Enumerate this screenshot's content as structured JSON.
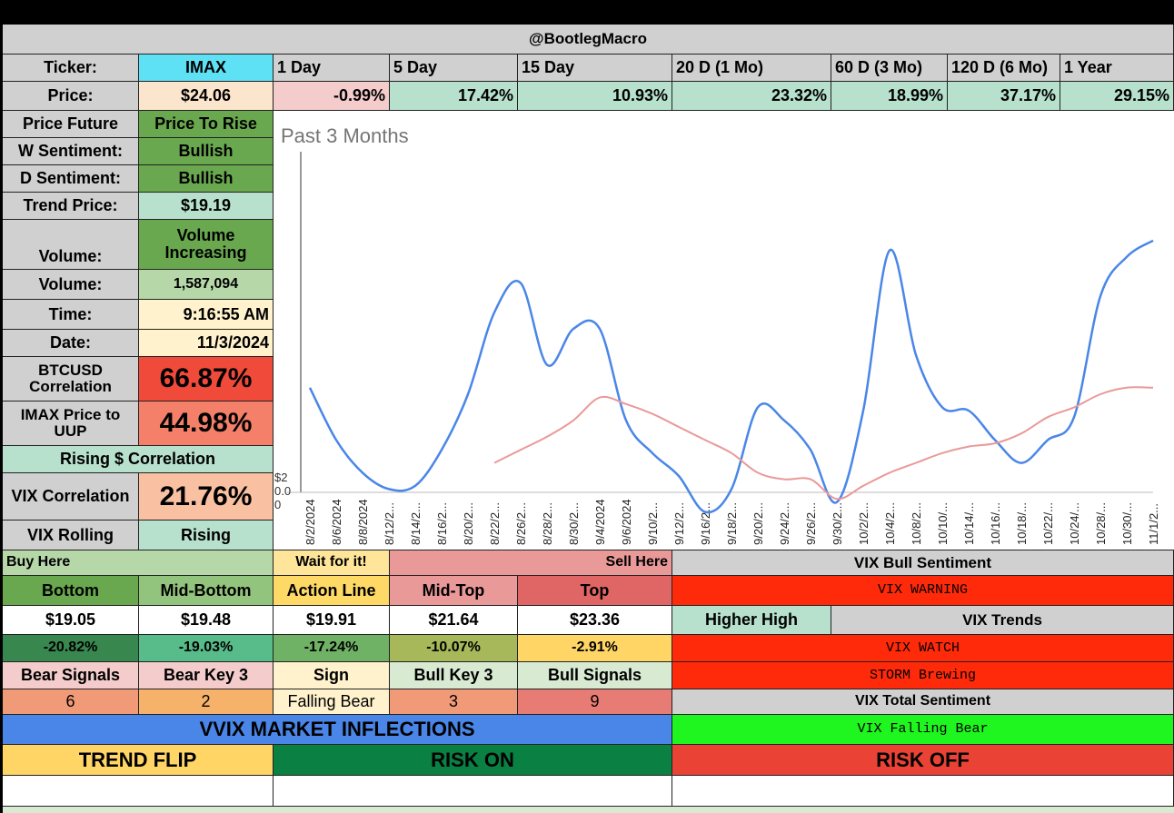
{
  "header": {
    "title": "@BootlegMacro"
  },
  "ticker": {
    "label": "Ticker:",
    "value": "IMAX"
  },
  "price": {
    "label": "Price:",
    "value": "$24.06"
  },
  "periods": [
    {
      "label": "1 Day",
      "change": "-0.99%",
      "color": "#f4cccc"
    },
    {
      "label": "5 Day",
      "change": "17.42%",
      "color": "#b7e1cd"
    },
    {
      "label": "15 Day",
      "change": "10.93%",
      "color": "#b7e1cd"
    },
    {
      "label": "20 D (1 Mo)",
      "change": "23.32%",
      "color": "#b7e1cd"
    },
    {
      "label": "60 D (3 Mo)",
      "change": "18.99%",
      "color": "#b7e1cd"
    },
    {
      "label": "120 D (6 Mo)",
      "change": "37.17%",
      "color": "#b7e1cd"
    },
    {
      "label": "1 Year",
      "change": "29.15%",
      "color": "#b7e1cd"
    }
  ],
  "left_panel": {
    "price_future_label": "Price Future",
    "price_future_value": "Price To Rise",
    "w_sentiment_label": "W Sentiment:",
    "w_sentiment_value": "Bullish",
    "d_sentiment_label": "D Sentiment:",
    "d_sentiment_value": "Bullish",
    "trend_price_label": "Trend Price:",
    "trend_price_value": "$19.19",
    "volume_trend_label": "Volume:",
    "volume_trend_value": "Volume Increasing",
    "volume_label": "Volume:",
    "volume_value": "1,587,094",
    "time_label": "Time:",
    "time_value": "9:16:55 AM",
    "date_label": "Date:",
    "date_value": "11/3/2024",
    "btc_corr_label": "BTCUSD Correlation",
    "btc_corr_value": "66.87%",
    "uup_corr_label": "IMAX Price to UUP",
    "uup_corr_value": "44.98%",
    "rising_corr_label": "Rising $ Correlation",
    "vix_corr_label": "VIX Correlation",
    "vix_corr_value": "21.76%",
    "vix_rolling_label": "VIX Rolling",
    "vix_rolling_value": "Rising"
  },
  "levels": {
    "buy_here": "Buy Here",
    "wait": "Wait for it!",
    "sell_here": "Sell Here",
    "headers": [
      "Bottom",
      "Mid-Bottom",
      "Action Line",
      "Mid-Top",
      "Top"
    ],
    "prices": [
      "$19.05",
      "$19.48",
      "$19.91",
      "$21.64",
      "$23.36"
    ],
    "pcts": [
      "-20.82%",
      "-19.03%",
      "-17.24%",
      "-10.07%",
      "-2.91%"
    ]
  },
  "signals": {
    "headers": [
      "Bear Signals",
      "Bear Key 3",
      "Sign",
      "Bull Key 3",
      "Bull Signals"
    ],
    "values": [
      "6",
      "2",
      "Falling Bear",
      "3",
      "9"
    ]
  },
  "vix_panel": {
    "bull_sentiment": "VIX Bull Sentiment",
    "warning": "VIX WARNING",
    "higher_high": "Higher High",
    "trends": "VIX Trends",
    "watch": "VIX WATCH",
    "storm": "STORM Brewing",
    "total_sentiment": "VIX Total Sentiment",
    "falling_bear": "VIX Falling Bear"
  },
  "inflections": {
    "title": "VVIX MARKET INFLECTIONS",
    "trend_flip": "TREND FLIP",
    "risk_on": "RISK ON",
    "risk_off": "RISK OFF"
  },
  "chart_data": {
    "type": "line",
    "title": "Past 3 Months",
    "y_tick_labels": [
      "$2",
      "0.0",
      "0"
    ],
    "x": [
      "8/2/2024",
      "8/6/2024",
      "8/8/2024",
      "8/12/2...",
      "8/14/2...",
      "8/16/2...",
      "8/20/2...",
      "8/22/2...",
      "8/26/2...",
      "8/28/2...",
      "8/30/2...",
      "9/4/2024",
      "9/6/2024",
      "9/10/2...",
      "9/12/2...",
      "9/16/2...",
      "9/18/2...",
      "9/20/2...",
      "9/24/2...",
      "9/26/2...",
      "9/30/2...",
      "10/2/2...",
      "10/4/2...",
      "10/8/2...",
      "10/10/...",
      "10/14/...",
      "10/16/...",
      "10/18/...",
      "10/22/...",
      "10/24/...",
      "10/28/...",
      "10/30/...",
      "11/1/2..."
    ],
    "ylim": [
      0,
      10
    ],
    "series": [
      {
        "name": "Price",
        "color": "#4a86e8",
        "values": [
          3.2,
          1.6,
          0.6,
          0.1,
          0.2,
          1.3,
          3.0,
          5.5,
          6.4,
          3.9,
          5.0,
          5.0,
          2.2,
          1.2,
          0.5,
          -0.6,
          0.1,
          2.6,
          2.2,
          1.3,
          -0.3,
          2.5,
          7.4,
          4.2,
          2.6,
          2.5,
          1.6,
          0.9,
          1.6,
          2.3,
          6.0,
          7.2,
          7.7
        ]
      },
      {
        "name": "Moving Average",
        "color": "#ea9999",
        "values": [
          null,
          null,
          null,
          null,
          null,
          null,
          null,
          0.9,
          1.3,
          1.7,
          2.2,
          2.9,
          2.7,
          2.4,
          2.0,
          1.6,
          1.2,
          0.6,
          0.4,
          0.4,
          -0.2,
          0.2,
          0.6,
          0.9,
          1.2,
          1.4,
          1.5,
          1.8,
          2.3,
          2.6,
          3.0,
          3.2,
          3.2
        ]
      }
    ]
  }
}
